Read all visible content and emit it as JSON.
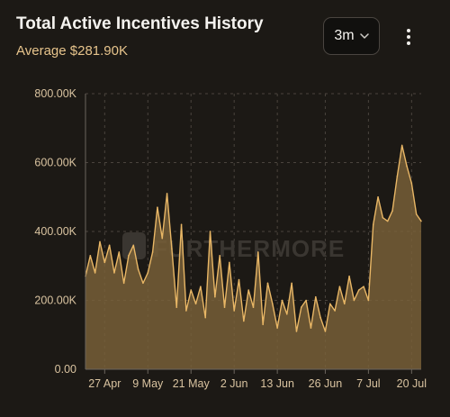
{
  "header": {
    "title": "Total Active Incentives History",
    "subtitle": "Average $281.90K",
    "range_selector": {
      "selected": "3m",
      "icon": "chevron-down-icon"
    },
    "more_icon": "vertical-ellipsis-icon"
  },
  "watermark": {
    "text": "FURTHERMORE"
  },
  "colors": {
    "background": "#1c1915",
    "line": "#e9b766",
    "area": "#7a6139",
    "axis_text": "#d9c3a0",
    "subtitle": "#e7c48c"
  },
  "chart_data": {
    "type": "area",
    "title": "Total Active Incentives History",
    "subtitle": "Average $281.90K",
    "ylim": [
      0,
      800000
    ],
    "yticks": [
      {
        "value": 0,
        "label": "0.00"
      },
      {
        "value": 200000,
        "label": "200.00K"
      },
      {
        "value": 400000,
        "label": "400.00K"
      },
      {
        "value": 600000,
        "label": "600.00K"
      },
      {
        "value": 800000,
        "label": "800.00K"
      }
    ],
    "xticks": [
      {
        "index": 4,
        "label": "27 Apr"
      },
      {
        "index": 13,
        "label": "9 May"
      },
      {
        "index": 22,
        "label": "21 May"
      },
      {
        "index": 31,
        "label": "2 Jun"
      },
      {
        "index": 40,
        "label": "13 Jun"
      },
      {
        "index": 50,
        "label": "26 Jun"
      },
      {
        "index": 59,
        "label": "7 Jul"
      },
      {
        "index": 68,
        "label": "20 Jul"
      }
    ],
    "grid": true,
    "legend": "none",
    "series": [
      {
        "values": [
          270000,
          330000,
          280000,
          370000,
          310000,
          360000,
          280000,
          340000,
          250000,
          330000,
          360000,
          290000,
          250000,
          280000,
          340000,
          470000,
          380000,
          510000,
          350000,
          180000,
          420000,
          170000,
          230000,
          190000,
          240000,
          150000,
          400000,
          210000,
          330000,
          180000,
          310000,
          170000,
          260000,
          140000,
          230000,
          180000,
          340000,
          130000,
          250000,
          190000,
          120000,
          200000,
          160000,
          250000,
          110000,
          180000,
          200000,
          120000,
          210000,
          150000,
          110000,
          190000,
          170000,
          240000,
          190000,
          270000,
          200000,
          230000,
          240000,
          200000,
          420000,
          500000,
          440000,
          430000,
          460000,
          560000,
          650000,
          590000,
          540000,
          450000,
          430000
        ]
      }
    ]
  }
}
